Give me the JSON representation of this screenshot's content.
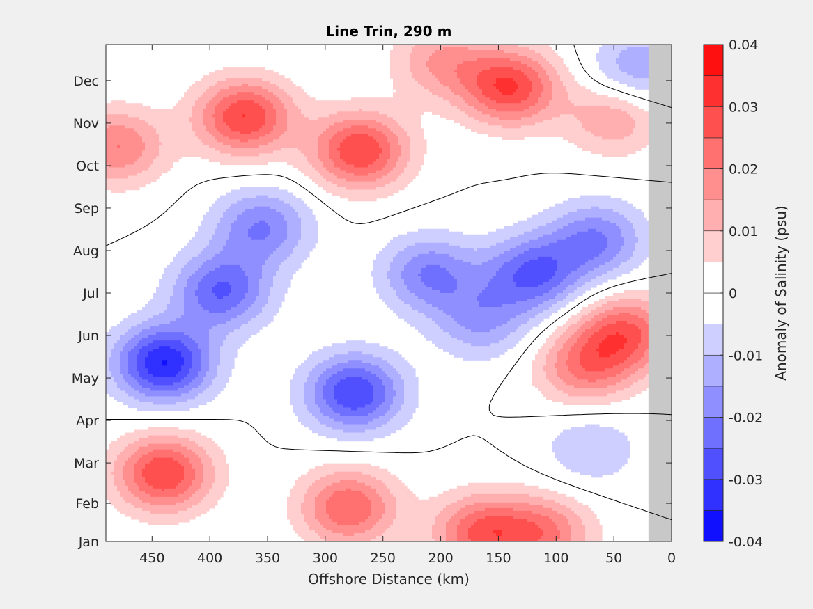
{
  "chart_data": {
    "type": "heatmap",
    "title": "Line Trin, 290 m",
    "xlabel": "Offshore Distance (km)",
    "colorbar_label": "Anomaly of Salinity (psu)",
    "x_reversed": true,
    "xlim": [
      490,
      0
    ],
    "x_ticks": [
      450,
      400,
      350,
      300,
      250,
      200,
      150,
      100,
      50,
      0
    ],
    "x_tick_labels": [
      "450",
      "400",
      "350",
      "300",
      "250",
      "200",
      "150",
      "100",
      "50",
      "0"
    ],
    "ylim": [
      1,
      12.7
    ],
    "y_ticks": [
      1,
      1.9,
      2.85,
      3.85,
      4.85,
      5.85,
      6.85,
      7.85,
      8.85,
      9.85,
      10.85,
      11.85
    ],
    "y_tick_labels": [
      "Jan",
      "Feb",
      "Mar",
      "Apr",
      "May",
      "Jun",
      "Jul",
      "Aug",
      "Sep",
      "Oct",
      "Nov",
      "Dec"
    ],
    "colorbar_range": [
      -0.04,
      0.04
    ],
    "colorbar_ticks": [
      -0.04,
      -0.03,
      -0.02,
      -0.01,
      0,
      0.01,
      0.02,
      0.03,
      0.04
    ],
    "colorbar_tick_labels": [
      "-0.04",
      "-0.03",
      "-0.02",
      "-0.01",
      "0",
      "0.01",
      "0.02",
      "0.03",
      "0.04"
    ],
    "contour_interval": 0.005,
    "contour_line_level": 0,
    "land_mask_x": [
      20,
      0
    ],
    "colors": {
      "positive_max": "#ff0000",
      "negative_max": "#0000ff",
      "zero": "#ffffff",
      "land_mask": "#c8c8c8",
      "contour_line": "#000000"
    },
    "anomaly_features": [
      {
        "x": 440,
        "y": 5.2,
        "value": -0.035
      },
      {
        "x": 390,
        "y": 6.9,
        "value": -0.025
      },
      {
        "x": 355,
        "y": 8.4,
        "value": -0.02
      },
      {
        "x": 275,
        "y": 4.5,
        "value": -0.03
      },
      {
        "x": 210,
        "y": 7.3,
        "value": -0.02
      },
      {
        "x": 120,
        "y": 7.3,
        "value": -0.025
      },
      {
        "x": 165,
        "y": 6.2,
        "value": -0.015
      },
      {
        "x": 65,
        "y": 8.1,
        "value": -0.02
      },
      {
        "x": 30,
        "y": 12.1,
        "value": -0.015
      },
      {
        "x": 70,
        "y": 3.2,
        "value": -0.01
      },
      {
        "x": 440,
        "y": 2.6,
        "value": 0.03
      },
      {
        "x": 280,
        "y": 1.8,
        "value": 0.025
      },
      {
        "x": 165,
        "y": 1.2,
        "value": 0.025
      },
      {
        "x": 110,
        "y": 1.2,
        "value": 0.02
      },
      {
        "x": 370,
        "y": 11.0,
        "value": 0.03
      },
      {
        "x": 270,
        "y": 10.2,
        "value": 0.03
      },
      {
        "x": 140,
        "y": 11.7,
        "value": 0.03
      },
      {
        "x": 480,
        "y": 10.3,
        "value": 0.02
      },
      {
        "x": 40,
        "y": 5.9,
        "value": 0.025
      },
      {
        "x": 75,
        "y": 5.1,
        "value": 0.02
      },
      {
        "x": 50,
        "y": 11.0,
        "value": 0.015
      },
      {
        "x": 200,
        "y": 12.3,
        "value": 0.015
      }
    ]
  }
}
